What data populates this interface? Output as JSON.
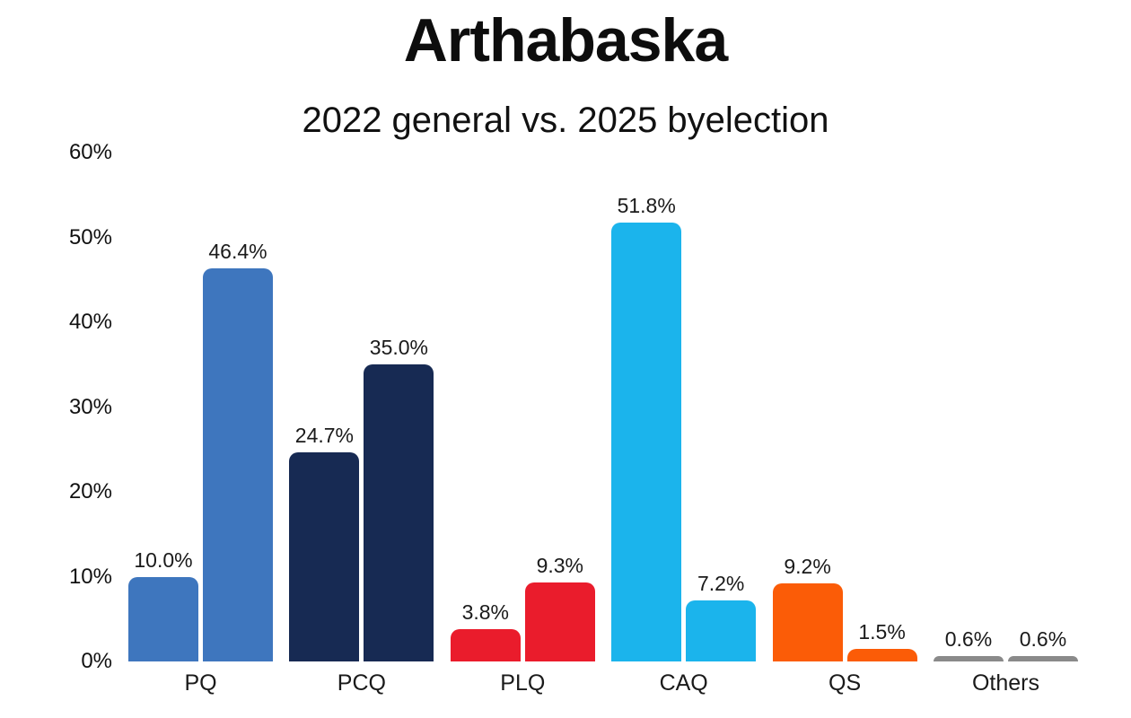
{
  "chart_data": {
    "type": "bar",
    "title": "Arthabaska",
    "subtitle": "2022 general vs. 2025 byelection",
    "categories": [
      "PQ",
      "PCQ",
      "PLQ",
      "CAQ",
      "QS",
      "Others"
    ],
    "series": [
      {
        "name": "2022 general",
        "values": [
          10.0,
          24.7,
          3.8,
          51.8,
          9.2,
          0.6
        ]
      },
      {
        "name": "2025 byelection",
        "values": [
          46.4,
          35.0,
          9.3,
          7.2,
          1.5,
          0.6
        ]
      }
    ],
    "bar_labels": [
      [
        "10.0%",
        "46.4%"
      ],
      [
        "24.7%",
        "35.0%"
      ],
      [
        "3.8%",
        "9.3%"
      ],
      [
        "51.8%",
        "7.2%"
      ],
      [
        "9.2%",
        "1.5%"
      ],
      [
        "0.6%",
        "0.6%"
      ]
    ],
    "category_colors": {
      "PQ": "#3E76BE",
      "PCQ": "#172A53",
      "PLQ": "#EA1C2C",
      "CAQ": "#1BB4EC",
      "QS": "#FB5C07",
      "Others": "#8A8A8A"
    },
    "y_ticks": [
      "0%",
      "10%",
      "20%",
      "30%",
      "40%",
      "50%",
      "60%"
    ],
    "y_tick_values": [
      0,
      10,
      20,
      30,
      40,
      50,
      60
    ],
    "ylim": [
      0,
      60
    ],
    "grid": false,
    "legend": "none",
    "background": "#ffffff"
  }
}
